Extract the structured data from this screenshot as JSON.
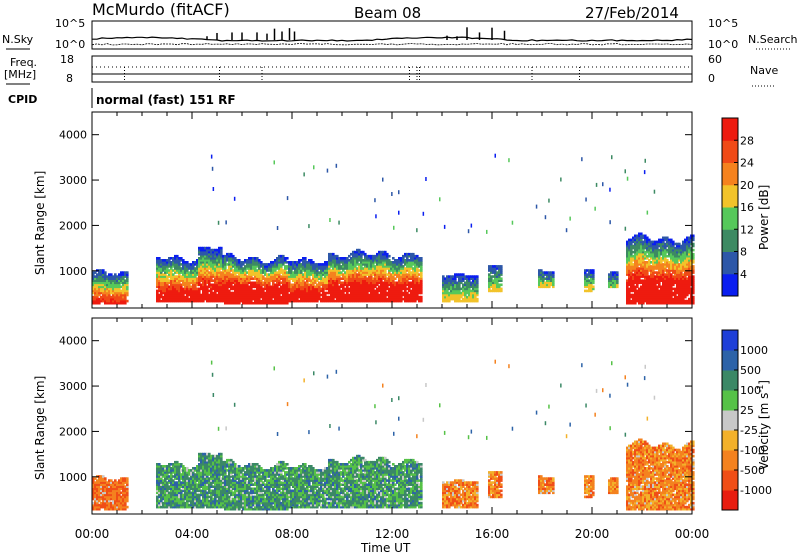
{
  "header": {
    "site": "McMurdo (fitACF)",
    "beam": "Beam 08",
    "date": "27/Feb/2014"
  },
  "status_panels": {
    "nsky_label": "N.Sky",
    "nsky_ticks": [
      "10^5",
      "10^0"
    ],
    "nsearch_label": "N.Search",
    "nsearch_ticks": [
      "10^5",
      "10^0"
    ],
    "freq_label": "Freq.",
    "freq_unit": "[MHz]",
    "freq_ticks": [
      "18",
      "8"
    ],
    "nave_label": "Nave",
    "nave_ticks": [
      "60",
      "0"
    ],
    "cpid_label": "CPID",
    "cpid_text": "normal (fast) 151 RF"
  },
  "chart_data": [
    {
      "type": "heatmap",
      "name": "power",
      "ylabel": "Slant Range [km]",
      "ylim": [
        180,
        4500
      ],
      "yticks": [
        "1000",
        "2000",
        "3000",
        "4000"
      ],
      "xticks": [
        "00:00",
        "04:00",
        "08:00",
        "12:00",
        "16:00",
        "20:00",
        "00:00"
      ],
      "xlim_hours": [
        0,
        24
      ],
      "colorbar": {
        "label": "Power [dB]",
        "ticks": [
          "4",
          "8",
          "12",
          "16",
          "20",
          "24",
          "28"
        ],
        "colors": [
          "#0a1ef0",
          "#2d57a8",
          "#3d8a63",
          "#56c85a",
          "#f2c32a",
          "#f5821e",
          "#f04a17",
          "#ee1b0f"
        ]
      }
    },
    {
      "type": "heatmap",
      "name": "velocity",
      "ylabel": "Slant Range [km]",
      "ylim": [
        180,
        4500
      ],
      "yticks": [
        "1000",
        "2000",
        "3000",
        "4000"
      ],
      "xticks": [
        "00:00",
        "04:00",
        "08:00",
        "12:00",
        "16:00",
        "20:00",
        "00:00"
      ],
      "xlabel": "Time UT",
      "xlim_hours": [
        0,
        24
      ],
      "colorbar": {
        "label": "Velocity [m s",
        "label_sup": "-1",
        "label_end": "]",
        "ticks": [
          "1000",
          "500",
          "100",
          "25",
          "-25",
          "-100",
          "-500",
          "-1000"
        ],
        "colors": [
          "#1f3fd8",
          "#2d63a8",
          "#3b8866",
          "#56c247",
          "#c8c8c8",
          "#f3b12a",
          "#f4821f",
          "#f04e17",
          "#e81c0f"
        ]
      }
    }
  ]
}
